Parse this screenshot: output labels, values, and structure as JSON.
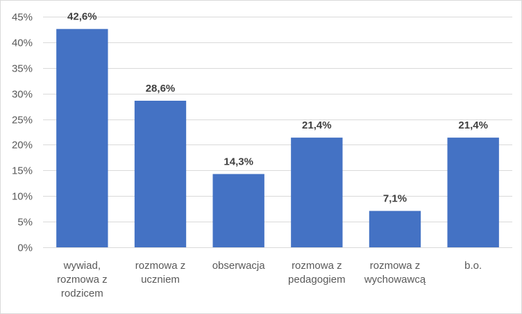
{
  "chart_data": {
    "type": "bar",
    "categories": [
      [
        "wywiad,",
        "rozmowa z",
        "rodzicem"
      ],
      [
        "rozmowa z",
        "uczniem"
      ],
      [
        "obserwacja"
      ],
      [
        "rozmowa z",
        "pedagogiem"
      ],
      [
        "rozmowa z",
        "wychowawcą"
      ],
      [
        "b.o."
      ]
    ],
    "values": [
      42.6,
      28.6,
      14.3,
      21.4,
      7.1,
      21.4
    ],
    "data_labels": [
      "42,6%",
      "28,6%",
      "14,3%",
      "21,4%",
      "7,1%",
      "21,4%"
    ],
    "y_ticks": [
      0,
      5,
      10,
      15,
      20,
      25,
      30,
      35,
      40,
      45
    ],
    "y_tick_labels": [
      "0%",
      "5%",
      "10%",
      "15%",
      "20%",
      "25%",
      "30%",
      "35%",
      "40%",
      "45%"
    ],
    "ylim": [
      0,
      45
    ],
    "grid": true,
    "legend": "none",
    "bar_color": "#4472C4",
    "grid_color": "#D9D9D9",
    "frame_color": "#D9D9D9"
  }
}
